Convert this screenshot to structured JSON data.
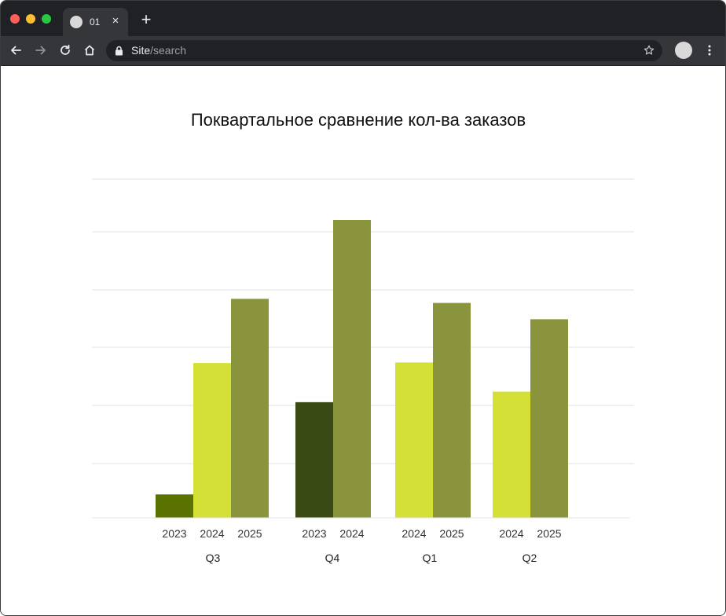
{
  "browser": {
    "tab_title": "01",
    "tab_close_label": "×",
    "new_tab_label": "+",
    "url_host": "Site",
    "url_path": "/search"
  },
  "icons": {
    "back": "arrow-left-icon",
    "forward": "arrow-right-icon",
    "reload": "reload-icon",
    "home": "home-icon",
    "lock": "lock-icon",
    "star": "star-icon",
    "menu": "kebab-menu-icon"
  },
  "chart_data": {
    "type": "bar",
    "title": "Поквартальное сравнение кол-ва заказов",
    "xlabel": "",
    "ylabel": "",
    "ylim": [
      0,
      580
    ],
    "grid": true,
    "legend": "none",
    "groups": [
      {
        "label": "Q3",
        "bars": [
          {
            "year": "2023",
            "value": 40,
            "color": "#5a7300"
          },
          {
            "year": "2024",
            "value": 265,
            "color": "#d4e035"
          },
          {
            "year": "2025",
            "value": 375,
            "color": "#8a943d"
          }
        ]
      },
      {
        "label": "Q4",
        "bars": [
          {
            "year": "2023",
            "value": 198,
            "color": "#3a4a14"
          },
          {
            "year": "2024",
            "value": 510,
            "color": "#8a943d"
          }
        ]
      },
      {
        "label": "Q1",
        "bars": [
          {
            "year": "2024",
            "value": 266,
            "color": "#d4e035"
          },
          {
            "year": "2025",
            "value": 368,
            "color": "#8a943d"
          }
        ]
      },
      {
        "label": "Q2",
        "bars": [
          {
            "year": "2024",
            "value": 216,
            "color": "#d4e035"
          },
          {
            "year": "2025",
            "value": 340,
            "color": "#8a943d"
          }
        ]
      }
    ]
  }
}
